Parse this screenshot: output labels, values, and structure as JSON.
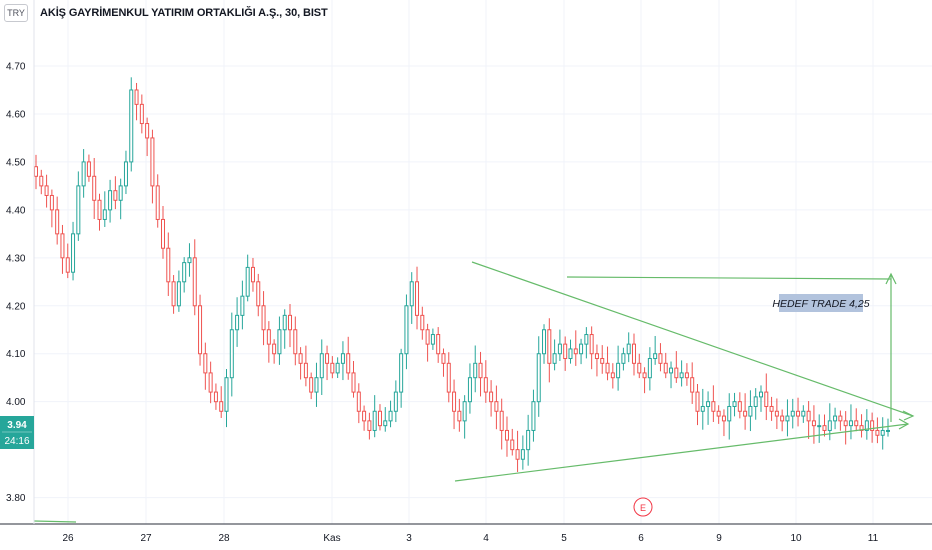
{
  "header": {
    "currency": "TRY",
    "title": "AKİŞ GAYRİMENKUL YATIRIM ORTAKLIĞI A.Ş., 30, BIST"
  },
  "price_scale": {
    "last_price": "3.94",
    "countdown": "24:16",
    "last_price_color": "#26a69a"
  },
  "annotation": {
    "text": "HEDEF TRADE 4,25",
    "bg_color": "#b2c3dd"
  },
  "event_marker": {
    "label": "E",
    "color": "#f23645"
  },
  "colors": {
    "up": "#26a69a",
    "down": "#ef5350",
    "drawing": "#66bb6a",
    "grid": "#f0f3fa"
  },
  "chart_data": {
    "type": "candlestick",
    "symbol": "AKİŞ GAYRİMENKUL YATIRIM ORTAKLIĞI A.Ş.",
    "interval": "30",
    "exchange": "BIST",
    "y_ticks": [
      "3.80",
      "4.00",
      "4.10",
      "4.20",
      "4.30",
      "4.40",
      "4.50",
      "4.60",
      "4.70"
    ],
    "ylim": [
      3.73,
      4.77
    ],
    "x_ticks": [
      "26",
      "27",
      "28",
      "Kas",
      "3",
      "4",
      "5",
      "6",
      "9",
      "10",
      "11"
    ],
    "closes": [
      4.47,
      4.45,
      4.43,
      4.4,
      4.35,
      4.3,
      4.27,
      4.35,
      4.45,
      4.5,
      4.47,
      4.42,
      4.38,
      4.4,
      4.44,
      4.42,
      4.45,
      4.5,
      4.65,
      4.62,
      4.58,
      4.55,
      4.45,
      4.38,
      4.32,
      4.25,
      4.2,
      4.25,
      4.29,
      4.3,
      4.2,
      4.1,
      4.06,
      4.02,
      4.0,
      3.98,
      4.05,
      4.15,
      4.18,
      4.22,
      4.28,
      4.25,
      4.2,
      4.15,
      4.12,
      4.1,
      4.15,
      4.18,
      4.15,
      4.1,
      4.08,
      4.05,
      4.02,
      4.05,
      4.1,
      4.08,
      4.06,
      4.08,
      4.1,
      4.06,
      4.02,
      3.98,
      3.96,
      3.94,
      3.98,
      3.95,
      3.96,
      3.98,
      4.02,
      4.1,
      4.2,
      4.25,
      4.18,
      4.15,
      4.12,
      4.14,
      4.1,
      4.08,
      4.02,
      3.98,
      3.96,
      4.0,
      4.05,
      4.08,
      4.05,
      4.02,
      4.0,
      3.98,
      3.94,
      3.92,
      3.9,
      3.88,
      3.9,
      3.94,
      4.0,
      4.1,
      4.15,
      4.08,
      4.1,
      4.12,
      4.09,
      4.11,
      4.1,
      4.12,
      4.14,
      4.1,
      4.09,
      4.08,
      4.06,
      4.05,
      4.08,
      4.1,
      4.12,
      4.08,
      4.06,
      4.05,
      4.09,
      4.1,
      4.08,
      4.06,
      4.07,
      4.05,
      4.06,
      4.05,
      4.02,
      3.98,
      3.99,
      4.0,
      3.98,
      3.97,
      3.96,
      3.99,
      4.0,
      3.98,
      3.97,
      3.99,
      4.01,
      4.02,
      3.99,
      3.98,
      3.97,
      3.96,
      3.97,
      3.98,
      3.97,
      3.98,
      3.96,
      3.95,
      3.95,
      3.94,
      3.96,
      3.97,
      3.96,
      3.95,
      3.96,
      3.95,
      3.94,
      3.96,
      3.94,
      3.93,
      3.94,
      3.94
    ]
  }
}
